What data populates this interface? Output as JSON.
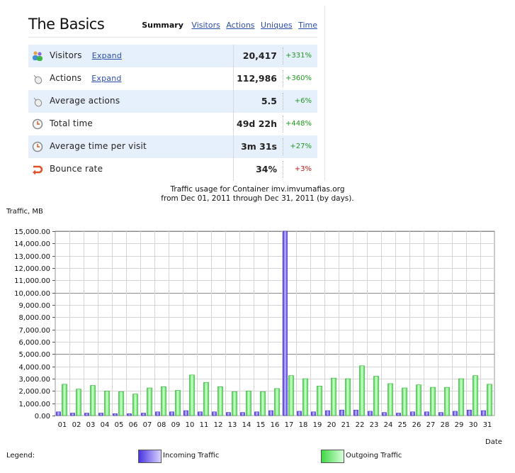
{
  "basics": {
    "title": "The Basics",
    "tabs": [
      {
        "label": "Summary",
        "active": true
      },
      {
        "label": "Visitors",
        "active": false
      },
      {
        "label": "Actions",
        "active": false
      },
      {
        "label": "Uniques",
        "active": false
      },
      {
        "label": "Time",
        "active": false
      }
    ],
    "rows": [
      {
        "label": "Visitors",
        "expand": "Expand",
        "value": "20,417",
        "change": "+331%",
        "trend": "positive",
        "icon": "visitors-icon"
      },
      {
        "label": "Actions",
        "expand": "Expand",
        "value": "112,986",
        "change": "+360%",
        "trend": "positive",
        "icon": "mouse-icon"
      },
      {
        "label": "Average actions",
        "expand": "",
        "value": "5.5",
        "change": "+6%",
        "trend": "positive",
        "icon": "mouse-icon"
      },
      {
        "label": "Total time",
        "expand": "",
        "value": "49d 22h",
        "change": "+448%",
        "trend": "positive",
        "icon": "clock-icon"
      },
      {
        "label": "Average time per visit",
        "expand": "",
        "value": "3m 31s",
        "change": "+27%",
        "trend": "positive",
        "icon": "clock-icon"
      },
      {
        "label": "Bounce rate",
        "expand": "",
        "value": "34%",
        "change": "+3%",
        "trend": "negative",
        "icon": "bounce-arrow-icon"
      }
    ],
    "colors": {
      "row_alt": "#e6effc",
      "positive": "#1e9a1e",
      "negative": "#c01818",
      "link": "#2b4ea8"
    }
  },
  "chart_data": {
    "type": "bar",
    "title": "Traffic usage for Container imv.imvumafias.org",
    "subtitle": "from Dec 01, 2011 through Dec 31, 2011 (by days).",
    "ylabel": "Traffic, MB",
    "xlabel": "Date",
    "ylim": [
      0,
      15000
    ],
    "y_ticks": [
      "0.00",
      "1,000.00",
      "2,000.00",
      "3,000.00",
      "4,000.00",
      "5,000.00",
      "6,000.00",
      "7,000.00",
      "8,000.00",
      "9,000.00",
      "10,000.00",
      "11,000.00",
      "12,000.00",
      "13,000.00",
      "14,000.00",
      "15,000.00"
    ],
    "grid": true,
    "categories": [
      "01",
      "02",
      "03",
      "04",
      "05",
      "06",
      "07",
      "08",
      "09",
      "10",
      "11",
      "12",
      "13",
      "14",
      "15",
      "16",
      "17",
      "18",
      "19",
      "20",
      "21",
      "22",
      "23",
      "24",
      "25",
      "26",
      "27",
      "28",
      "29",
      "30",
      "31"
    ],
    "series": [
      {
        "name": "Incoming Traffic",
        "color": "#5a46e6",
        "values": [
          300,
          200,
          200,
          200,
          150,
          150,
          200,
          300,
          300,
          400,
          300,
          300,
          250,
          250,
          300,
          400,
          15000,
          350,
          300,
          400,
          450,
          450,
          350,
          250,
          200,
          300,
          300,
          250,
          350,
          450,
          400
        ]
      },
      {
        "name": "Outgoing Traffic",
        "color": "#55e05a",
        "values": [
          2550,
          2150,
          2450,
          2000,
          1950,
          1750,
          2250,
          2350,
          2050,
          3300,
          2700,
          2350,
          1950,
          2000,
          1950,
          2200,
          3250,
          3000,
          2400,
          3050,
          3000,
          4050,
          3200,
          2600,
          2250,
          2500,
          2300,
          2300,
          3000,
          3250,
          2550
        ]
      }
    ],
    "legend_label": "Legend:",
    "legend_position": "bottom"
  }
}
